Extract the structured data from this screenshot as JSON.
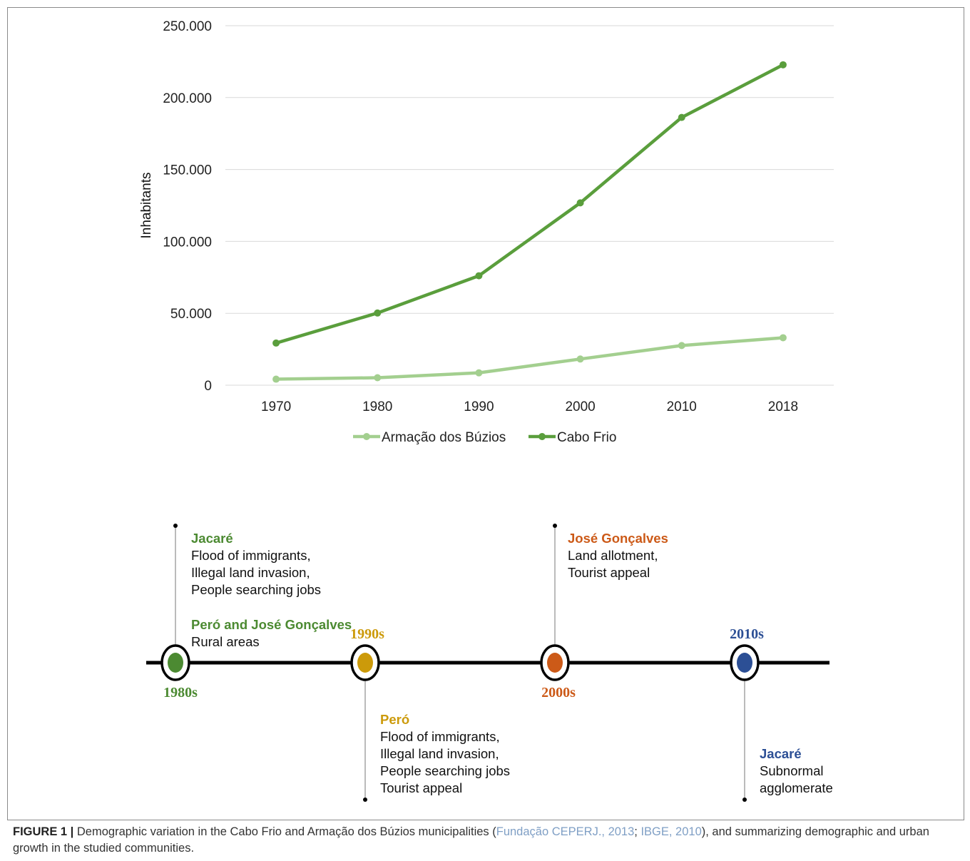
{
  "chart_data": {
    "type": "line",
    "x": [
      "1970",
      "1980",
      "1990",
      "2000",
      "2010",
      "2018"
    ],
    "series": [
      {
        "name": "Armação dos Búzios",
        "color": "#a3cf8f",
        "values": [
          4200,
          5200,
          8600,
          18200,
          27600,
          33000
        ]
      },
      {
        "name": "Cabo Frio",
        "color": "#5a9e3c",
        "values": [
          29300,
          50200,
          76100,
          126800,
          186200,
          222800
        ]
      }
    ],
    "ylabel": "Inhabitants",
    "ylim": [
      0,
      250000
    ],
    "yticks": [
      "0",
      "50.000",
      "100.000",
      "150.000",
      "200.000",
      "250.000"
    ],
    "grid": true,
    "legend_position": "bottom"
  },
  "timeline": {
    "decades": [
      {
        "label": "1980s",
        "color": "#4c8a32"
      },
      {
        "label": "1990s",
        "color": "#cc9a0a"
      },
      {
        "label": "2000s",
        "color": "#cc5a18"
      },
      {
        "label": "2010s",
        "color": "#2c4f95"
      }
    ],
    "notes": {
      "n1980_a": {
        "title": "Jacaré",
        "lines": [
          "Flood of immigrants,",
          "Illegal land invasion,",
          "People searching jobs"
        ]
      },
      "n1980_b": {
        "title": "Peró and José Gonçalves",
        "lines": [
          "Rural areas"
        ]
      },
      "n1990": {
        "title": "Peró",
        "lines": [
          "Flood of immigrants,",
          "Illegal land invasion,",
          "People searching jobs",
          "Tourist appeal"
        ]
      },
      "n2000": {
        "title": "José Gonçalves",
        "lines": [
          "Land allotment,",
          "Tourist appeal"
        ]
      },
      "n2010": {
        "title": "Jacaré",
        "lines": [
          "Subnormal",
          "agglomerate"
        ]
      }
    }
  },
  "caption": {
    "label": "FIGURE 1 |",
    "text1": " Demographic variation in the Cabo Frio and Armação dos Búzios municipalities (",
    "ref1": "Fundação CEPERJ., 2013",
    "sep": "; ",
    "ref2": "IBGE, 2010",
    "text2": "), and summarizing demographic and urban growth in the studied communities."
  }
}
